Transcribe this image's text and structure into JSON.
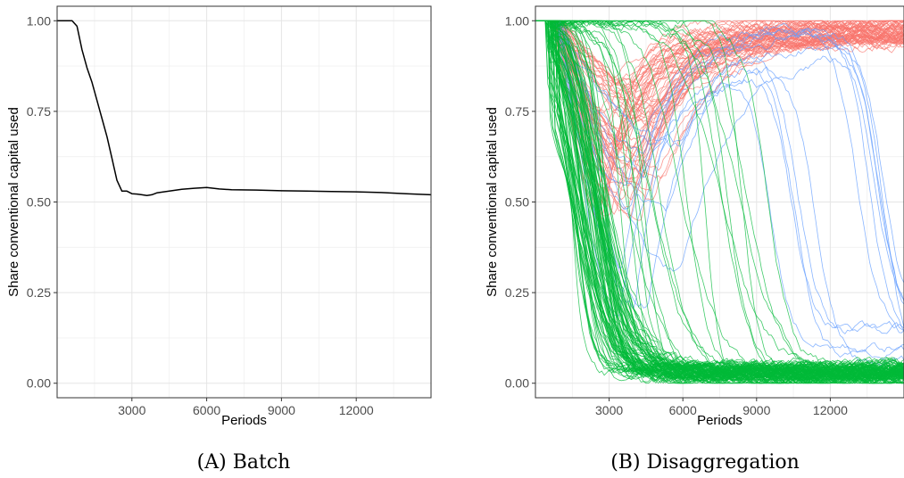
{
  "chart_data": [
    {
      "type": "line",
      "caption": "(A) Batch",
      "xlabel": "Periods",
      "ylabel": "Share conventional capital used",
      "xticks": [
        3000,
        6000,
        9000,
        12000
      ],
      "yticks": [
        0.0,
        0.25,
        0.5,
        0.75,
        1.0
      ],
      "ytick_labels": [
        "0.00",
        "0.25",
        "0.50",
        "0.75",
        "1.00"
      ],
      "xtick_labels": [
        "3000",
        "6000",
        "9000",
        "12000"
      ],
      "xlim": [
        0,
        15000
      ],
      "ylim": [
        -0.04,
        1.04
      ],
      "grid": true,
      "series": [
        {
          "color": "#000000",
          "x": [
            0,
            200,
            400,
            600,
            800,
            1000,
            1200,
            1400,
            1600,
            1800,
            2000,
            2200,
            2400,
            2600,
            2800,
            3000,
            3200,
            3400,
            3600,
            3800,
            4000,
            4500,
            5000,
            5500,
            6000,
            6500,
            7000,
            8000,
            9000,
            10000,
            11000,
            12000,
            13000,
            14000,
            15000
          ],
          "y": [
            1.0,
            1.0,
            1.0,
            1.0,
            0.985,
            0.92,
            0.87,
            0.83,
            0.78,
            0.73,
            0.68,
            0.62,
            0.56,
            0.53,
            0.53,
            0.523,
            0.522,
            0.52,
            0.518,
            0.52,
            0.525,
            0.53,
            0.535,
            0.538,
            0.54,
            0.536,
            0.534,
            0.533,
            0.531,
            0.53,
            0.529,
            0.528,
            0.526,
            0.523,
            0.52
          ]
        }
      ]
    },
    {
      "type": "line",
      "caption": "(B) Disaggregation",
      "xlabel": "Periods",
      "ylabel": "Share conventional capital used",
      "xticks": [
        3000,
        6000,
        9000,
        12000
      ],
      "yticks": [
        0.0,
        0.25,
        0.5,
        0.75,
        1.0
      ],
      "ytick_labels": [
        "0.00",
        "0.25",
        "0.50",
        "0.75",
        "1.00"
      ],
      "xtick_labels": [
        "3000",
        "6000",
        "9000",
        "12000"
      ],
      "xlim": [
        0,
        15000
      ],
      "ylim": [
        -0.04,
        1.04
      ],
      "grid": true,
      "groups": [
        {
          "color": "#f8766d",
          "count": 60,
          "shape": "dip-and-recover",
          "onset_range": [
            600,
            1200
          ],
          "dip_min_range": [
            0.45,
            0.85
          ],
          "dip_time_range": [
            2500,
            5500
          ],
          "final_range": [
            0.94,
            1.0
          ]
        },
        {
          "color": "#619cff",
          "count": 12,
          "shape": "dip-recover-fall",
          "onset_range": [
            700,
            1100
          ],
          "dip_min_range": [
            0.2,
            0.7
          ],
          "peak_range": [
            0.9,
            1.0
          ],
          "fall_time_range": [
            9500,
            14800
          ],
          "final_range": [
            0.03,
            0.2
          ]
        },
        {
          "color": "#00ba38",
          "count": 110,
          "shape": "sigmoid-fall",
          "onset_range": [
            400,
            1000
          ],
          "midpoint_range": [
            1400,
            9500
          ],
          "final_range": [
            0.01,
            0.05
          ]
        }
      ]
    }
  ]
}
